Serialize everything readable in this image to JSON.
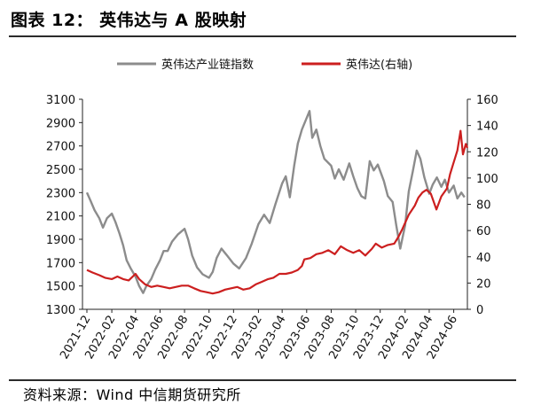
{
  "header": {
    "title": "图表 12： 英伟达与 A 股映射"
  },
  "footer": {
    "source": "资料来源：Wind  中信期货研究所"
  },
  "colors": {
    "index_series": "#8c8c8c",
    "nvda_series": "#cc1f1f",
    "text": "#111111",
    "rule": "#2b2b2b"
  },
  "chart_data": {
    "type": "line",
    "title": "",
    "legend_position": "top",
    "grid": false,
    "x_axis": {
      "range": [
        "2021-11-20",
        "2024-07-05"
      ],
      "tick_labels": [
        "2021-12",
        "2022-02",
        "2022-04",
        "2022-06",
        "2022-08",
        "2022-10",
        "2022-12",
        "2023-02",
        "2023-04",
        "2023-06",
        "2023-08",
        "2023-10",
        "2023-12",
        "2024-02",
        "2024-04",
        "2024-06"
      ]
    },
    "y_left": {
      "range": [
        1300,
        3100
      ],
      "ticks": [
        1300,
        1500,
        1700,
        1900,
        2100,
        2300,
        2500,
        2700,
        2900,
        3100
      ]
    },
    "y_right": {
      "range": [
        0,
        160
      ],
      "ticks": [
        0,
        20,
        40,
        60,
        80,
        100,
        120,
        140,
        160
      ]
    },
    "series": [
      {
        "name": "英伟达产业链指数",
        "axis": "left",
        "points": [
          [
            "2021-12-01",
            2300
          ],
          [
            "2021-12-10",
            2230
          ],
          [
            "2021-12-20",
            2150
          ],
          [
            "2022-01-01",
            2080
          ],
          [
            "2022-01-10",
            2000
          ],
          [
            "2022-01-20",
            2080
          ],
          [
            "2022-02-01",
            2120
          ],
          [
            "2022-02-10",
            2050
          ],
          [
            "2022-02-20",
            1950
          ],
          [
            "2022-03-01",
            1850
          ],
          [
            "2022-03-10",
            1720
          ],
          [
            "2022-03-20",
            1650
          ],
          [
            "2022-04-01",
            1580
          ],
          [
            "2022-04-10",
            1500
          ],
          [
            "2022-04-20",
            1440
          ],
          [
            "2022-04-28",
            1500
          ],
          [
            "2022-05-10",
            1560
          ],
          [
            "2022-05-20",
            1640
          ],
          [
            "2022-06-01",
            1720
          ],
          [
            "2022-06-10",
            1800
          ],
          [
            "2022-06-20",
            1800
          ],
          [
            "2022-07-01",
            1880
          ],
          [
            "2022-07-15",
            1940
          ],
          [
            "2022-08-01",
            1990
          ],
          [
            "2022-08-10",
            1900
          ],
          [
            "2022-08-20",
            1760
          ],
          [
            "2022-09-01",
            1660
          ],
          [
            "2022-09-15",
            1600
          ],
          [
            "2022-10-01",
            1570
          ],
          [
            "2022-10-10",
            1620
          ],
          [
            "2022-10-20",
            1740
          ],
          [
            "2022-11-01",
            1820
          ],
          [
            "2022-11-15",
            1760
          ],
          [
            "2022-12-01",
            1690
          ],
          [
            "2022-12-15",
            1650
          ],
          [
            "2023-01-01",
            1740
          ],
          [
            "2023-01-15",
            1860
          ],
          [
            "2023-02-01",
            2030
          ],
          [
            "2023-02-15",
            2110
          ],
          [
            "2023-03-01",
            2040
          ],
          [
            "2023-03-15",
            2200
          ],
          [
            "2023-04-01",
            2380
          ],
          [
            "2023-04-10",
            2440
          ],
          [
            "2023-04-20",
            2260
          ],
          [
            "2023-05-01",
            2530
          ],
          [
            "2023-05-10",
            2720
          ],
          [
            "2023-05-20",
            2840
          ],
          [
            "2023-06-01",
            2940
          ],
          [
            "2023-06-08",
            3000
          ],
          [
            "2023-06-15",
            2770
          ],
          [
            "2023-06-25",
            2840
          ],
          [
            "2023-07-05",
            2700
          ],
          [
            "2023-07-15",
            2590
          ],
          [
            "2023-08-01",
            2530
          ],
          [
            "2023-08-10",
            2420
          ],
          [
            "2023-08-20",
            2500
          ],
          [
            "2023-09-01",
            2410
          ],
          [
            "2023-09-15",
            2550
          ],
          [
            "2023-09-25",
            2440
          ],
          [
            "2023-10-05",
            2340
          ],
          [
            "2023-10-15",
            2270
          ],
          [
            "2023-10-25",
            2250
          ],
          [
            "2023-11-05",
            2570
          ],
          [
            "2023-11-15",
            2490
          ],
          [
            "2023-11-25",
            2540
          ],
          [
            "2023-12-10",
            2400
          ],
          [
            "2023-12-20",
            2270
          ],
          [
            "2024-01-01",
            2220
          ],
          [
            "2024-01-10",
            2020
          ],
          [
            "2024-01-20",
            1820
          ],
          [
            "2024-02-01",
            2020
          ],
          [
            "2024-02-10",
            2310
          ],
          [
            "2024-02-20",
            2480
          ],
          [
            "2024-03-01",
            2660
          ],
          [
            "2024-03-10",
            2590
          ],
          [
            "2024-03-20",
            2430
          ],
          [
            "2024-04-01",
            2290
          ],
          [
            "2024-04-10",
            2370
          ],
          [
            "2024-04-20",
            2430
          ],
          [
            "2024-05-01",
            2350
          ],
          [
            "2024-05-10",
            2410
          ],
          [
            "2024-05-20",
            2300
          ],
          [
            "2024-06-01",
            2360
          ],
          [
            "2024-06-10",
            2250
          ],
          [
            "2024-06-20",
            2300
          ],
          [
            "2024-06-28",
            2260
          ]
        ]
      },
      {
        "name": "英伟达(右轴)",
        "axis": "right",
        "points": [
          [
            "2021-12-01",
            30
          ],
          [
            "2021-12-15",
            28
          ],
          [
            "2022-01-01",
            26
          ],
          [
            "2022-01-15",
            24
          ],
          [
            "2022-02-01",
            23
          ],
          [
            "2022-02-15",
            25
          ],
          [
            "2022-03-01",
            23
          ],
          [
            "2022-03-15",
            22
          ],
          [
            "2022-04-01",
            27
          ],
          [
            "2022-04-10",
            23
          ],
          [
            "2022-04-25",
            19
          ],
          [
            "2022-05-10",
            17
          ],
          [
            "2022-05-25",
            18
          ],
          [
            "2022-06-10",
            17
          ],
          [
            "2022-06-25",
            16
          ],
          [
            "2022-07-10",
            17
          ],
          [
            "2022-07-25",
            18
          ],
          [
            "2022-08-10",
            18
          ],
          [
            "2022-08-25",
            16
          ],
          [
            "2022-09-10",
            14
          ],
          [
            "2022-09-25",
            13
          ],
          [
            "2022-10-10",
            12
          ],
          [
            "2022-10-25",
            13
          ],
          [
            "2022-11-10",
            15
          ],
          [
            "2022-11-25",
            16
          ],
          [
            "2022-12-10",
            17
          ],
          [
            "2022-12-25",
            15
          ],
          [
            "2023-01-10",
            16
          ],
          [
            "2023-01-25",
            19
          ],
          [
            "2023-02-10",
            21
          ],
          [
            "2023-02-25",
            23
          ],
          [
            "2023-03-10",
            24
          ],
          [
            "2023-03-25",
            27
          ],
          [
            "2023-04-10",
            27
          ],
          [
            "2023-04-25",
            28
          ],
          [
            "2023-05-10",
            30
          ],
          [
            "2023-05-20",
            33
          ],
          [
            "2023-05-26",
            38
          ],
          [
            "2023-06-10",
            39
          ],
          [
            "2023-06-25",
            42
          ],
          [
            "2023-07-10",
            43
          ],
          [
            "2023-07-25",
            45
          ],
          [
            "2023-08-10",
            42
          ],
          [
            "2023-08-25",
            48
          ],
          [
            "2023-09-10",
            45
          ],
          [
            "2023-09-25",
            43
          ],
          [
            "2023-10-10",
            45
          ],
          [
            "2023-10-25",
            41
          ],
          [
            "2023-11-10",
            46
          ],
          [
            "2023-11-20",
            50
          ],
          [
            "2023-12-05",
            47
          ],
          [
            "2023-12-20",
            49
          ],
          [
            "2024-01-05",
            50
          ],
          [
            "2024-01-15",
            55
          ],
          [
            "2024-01-25",
            61
          ],
          [
            "2024-02-10",
            72
          ],
          [
            "2024-02-25",
            79
          ],
          [
            "2024-03-05",
            85
          ],
          [
            "2024-03-15",
            89
          ],
          [
            "2024-03-25",
            91
          ],
          [
            "2024-04-05",
            88
          ],
          [
            "2024-04-19",
            76
          ],
          [
            "2024-05-01",
            86
          ],
          [
            "2024-05-15",
            92
          ],
          [
            "2024-05-23",
            103
          ],
          [
            "2024-06-01",
            112
          ],
          [
            "2024-06-10",
            121
          ],
          [
            "2024-06-18",
            136
          ],
          [
            "2024-06-24",
            118
          ],
          [
            "2024-07-01",
            126
          ],
          [
            "2024-07-05",
            123
          ]
        ]
      }
    ]
  }
}
